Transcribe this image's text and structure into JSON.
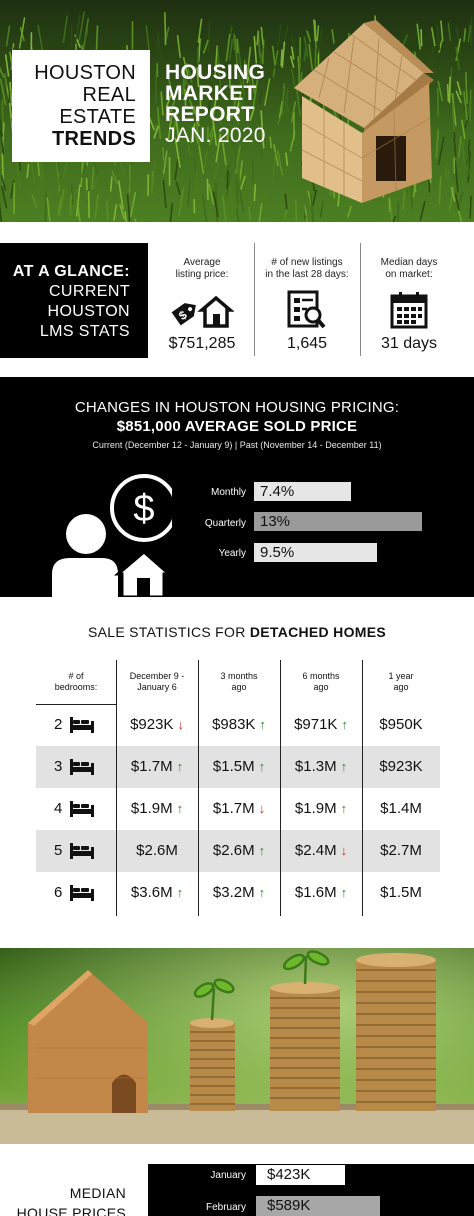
{
  "hero": {
    "title_lines": [
      "HOUSTON",
      "REAL",
      "ESTATE",
      "TRENDS"
    ],
    "report_lines": [
      "HOUSING",
      "MARKET",
      "REPORT",
      "JAN. 2020"
    ],
    "image": "wooden-house-on-grass-photo"
  },
  "glance": {
    "lines": [
      "AT A GLANCE:",
      "CURRENT",
      "HOUSTON",
      "LMS STATS"
    ],
    "stats": [
      {
        "caption_1": "Average",
        "caption_2": "listing price:",
        "value": "$751,285",
        "icon": "price-tag-house-icon"
      },
      {
        "caption_1": "# of new listings",
        "caption_2": "in the last 28 days:",
        "value": "1,645",
        "icon": "listing-search-icon"
      },
      {
        "caption_1": "Median days",
        "caption_2": "on market:",
        "value": "31 days",
        "icon": "calendar-icon"
      }
    ]
  },
  "pricing": {
    "heading": "CHANGES IN HOUSTON HOUSING PRICING:",
    "subheading": "$851,000 AVERAGE SOLD PRICE",
    "periods": "Current (December 12 - January 9)  |  Past (November 14 - December 11)",
    "changes": [
      {
        "label": "Monthly",
        "value": "7.4%",
        "fraction": 0.58,
        "color": "#e6e6e6"
      },
      {
        "label": "Quarterly",
        "value": "13%",
        "fraction": 1.0,
        "color": "#9a9a9a"
      },
      {
        "label": "Yearly",
        "value": "9.5%",
        "fraction": 0.73,
        "color": "#e6e6e6"
      }
    ],
    "illustration": "person-dollar-house-icon"
  },
  "sale": {
    "title_prefix": "SALE STATISTICS FOR ",
    "title_bold": "DETACHED HOMES",
    "headers": [
      [
        "# of",
        "bedrooms:"
      ],
      [
        "December 9 -",
        "January 6"
      ],
      [
        "3 months",
        "ago"
      ],
      [
        "6 months",
        "ago"
      ],
      [
        "1 year",
        "ago"
      ]
    ],
    "rows": [
      {
        "bedrooms": "2",
        "cells": [
          {
            "v": "$923K",
            "t": "down"
          },
          {
            "v": "$983K",
            "t": "up"
          },
          {
            "v": "$971K",
            "t": "up"
          },
          {
            "v": "$950K",
            "t": ""
          }
        ]
      },
      {
        "bedrooms": "3",
        "cells": [
          {
            "v": "$1.7M",
            "t": "up"
          },
          {
            "v": "$1.5M",
            "t": "up"
          },
          {
            "v": "$1.3M",
            "t": "up"
          },
          {
            "v": "$923K",
            "t": ""
          }
        ]
      },
      {
        "bedrooms": "4",
        "cells": [
          {
            "v": "$1.9M",
            "t": "up"
          },
          {
            "v": "$1.7M",
            "t": "down"
          },
          {
            "v": "$1.9M",
            "t": "up"
          },
          {
            "v": "$1.4M",
            "t": ""
          }
        ]
      },
      {
        "bedrooms": "5",
        "cells": [
          {
            "v": "$2.6M",
            "t": ""
          },
          {
            "v": "$2.6M",
            "t": "up"
          },
          {
            "v": "$2.4M",
            "t": "down"
          },
          {
            "v": "$2.7M",
            "t": ""
          }
        ]
      },
      {
        "bedrooms": "6",
        "cells": [
          {
            "v": "$3.6M",
            "t": "up"
          },
          {
            "v": "$3.2M",
            "t": "up"
          },
          {
            "v": "$1.6M",
            "t": "up"
          },
          {
            "v": "$1.5M",
            "t": ""
          }
        ]
      }
    ],
    "bed_icon": "bed-icon",
    "up_color": "#2d8a2d",
    "down_color": "#d42a2a"
  },
  "coins_image": "wooden-house-and-coin-stacks-photo",
  "median": {
    "lines": [
      "MEDIAN",
      "HOUSE PRICES"
    ],
    "months": [
      {
        "label": "January",
        "value": "$423K",
        "fraction": 0.72
      },
      {
        "label": "February",
        "value": "$589K",
        "fraction": 1.0
      }
    ]
  }
}
